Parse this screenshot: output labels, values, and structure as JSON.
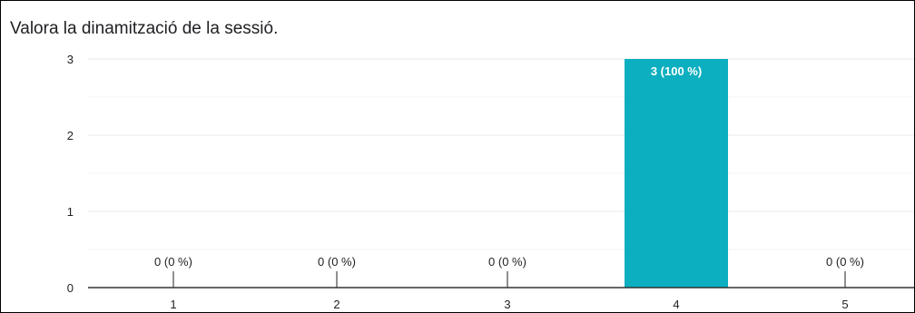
{
  "chart_data": {
    "type": "bar",
    "title": "Valora la dinamització de la sessió.",
    "xlabel": "",
    "ylabel": "",
    "categories": [
      "1",
      "2",
      "3",
      "4",
      "5"
    ],
    "values": [
      0,
      0,
      0,
      3,
      0
    ],
    "data_labels": [
      "0 (0 %)",
      "0 (0 %)",
      "0 (0 %)",
      "3 (100 %)",
      "0 (0 %)"
    ],
    "y_ticks": [
      "0",
      "1",
      "2",
      "3"
    ],
    "ylim": [
      0,
      3
    ],
    "grid": true,
    "legend": "none",
    "bar_color": "#0cafbf",
    "gridline_color": "#e8e8e8"
  }
}
